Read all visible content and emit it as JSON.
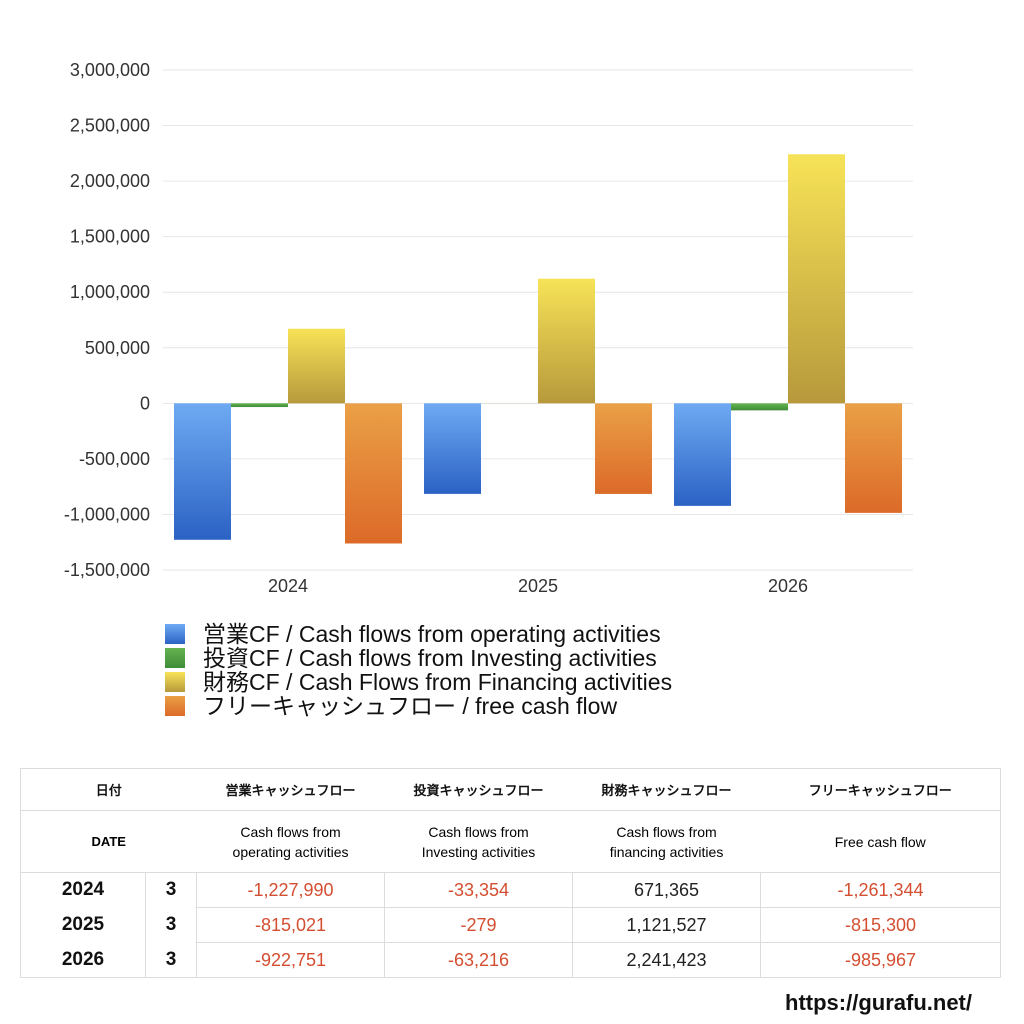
{
  "chart_data": {
    "type": "bar",
    "categories": [
      "2024",
      "2025",
      "2026"
    ],
    "series": [
      {
        "name": "営業CF / Cash flows from operating activities",
        "values": [
          -1227990,
          -815021,
          -922751
        ],
        "color_top": "#6eaaf3",
        "color_bottom": "#2b62c4"
      },
      {
        "name": "投資CF / Cash flows from Investing activities",
        "values": [
          -33354,
          -279,
          -63216
        ],
        "color_top": "#66b352",
        "color_bottom": "#3e8c37"
      },
      {
        "name": "財務CF / Cash Flows from Financing activities",
        "values": [
          671365,
          1121527,
          2241423
        ],
        "color_top": "#f7e357",
        "color_bottom": "#b7993c"
      },
      {
        "name": "フリーキャッシュフロー / free cash flow",
        "values": [
          -1261344,
          -815300,
          -985967
        ],
        "color_top": "#eaa046",
        "color_bottom": "#dc6a29"
      }
    ],
    "ylim": [
      -1500000,
      3000000
    ],
    "yticks": [
      "3,000,000",
      "2,500,000",
      "2,000,000",
      "1,500,000",
      "1,000,000",
      "500,000",
      "0",
      "-500,000",
      "-1,000,000",
      "-1,500,000"
    ],
    "grid": true,
    "legend": "bottom-left"
  },
  "table": {
    "header": {
      "date_ja": "日付",
      "date_en": "DATE",
      "columns": [
        {
          "ja": "営業キャッシュフロー",
          "en": [
            "Cash flows from",
            "operating activities"
          ]
        },
        {
          "ja": "投資キャッシュフロー",
          "en": [
            "Cash flows from",
            "Investing activities"
          ]
        },
        {
          "ja": "財務キャッシュフロー",
          "en": [
            "Cash flows from",
            "financing activities"
          ]
        },
        {
          "ja": "フリーキャッシュフロー",
          "en": [
            "Free cash flow"
          ]
        }
      ]
    },
    "rows": [
      {
        "year": "2024",
        "month": "3",
        "values": [
          "-1,227,990",
          "-33,354",
          "671,365",
          "-1,261,344"
        ]
      },
      {
        "year": "2025",
        "month": "3",
        "values": [
          "-815,021",
          "-279",
          "1,121,527",
          "-815,300"
        ]
      },
      {
        "year": "2026",
        "month": "3",
        "values": [
          "-922,751",
          "-63,216",
          "2,241,423",
          "-985,967"
        ]
      }
    ],
    "negative_color": "#d44e31",
    "positive_color": "#222222"
  },
  "footer": {
    "url": "https://gurafu.net/"
  }
}
